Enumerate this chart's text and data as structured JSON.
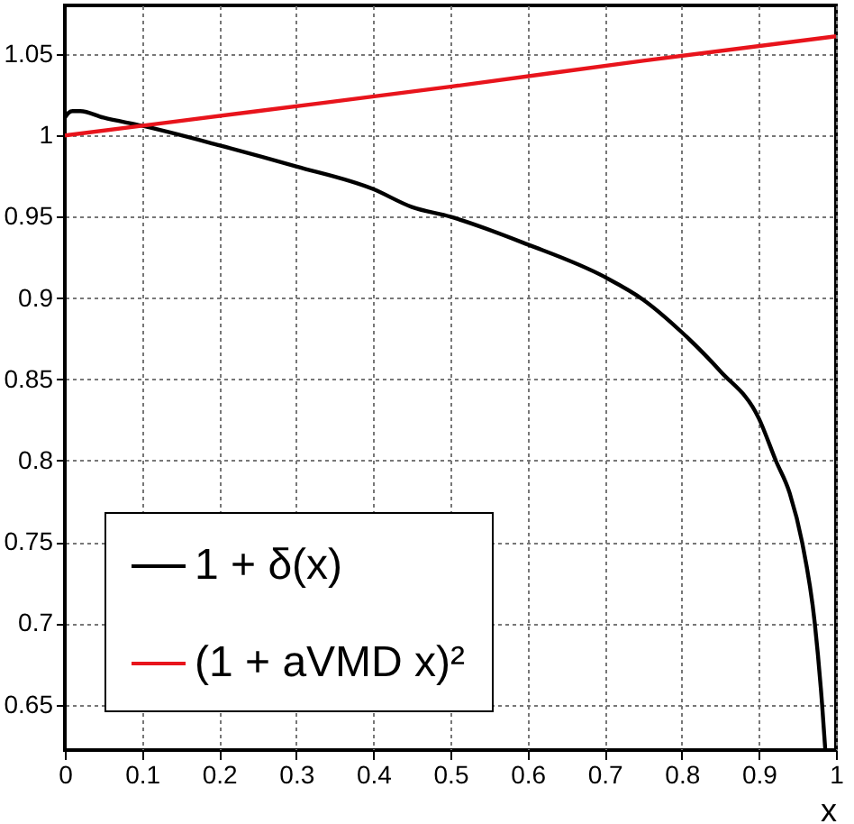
{
  "chart_data": {
    "type": "line",
    "xlabel": "x",
    "xlim": [
      0,
      1
    ],
    "ylim": [
      0.622,
      1.08
    ],
    "xticks": [
      0,
      0.1,
      0.2,
      0.3,
      0.4,
      0.5,
      0.6,
      0.7,
      0.8,
      0.9,
      1
    ],
    "yticks": [
      0.65,
      0.7,
      0.75,
      0.8,
      0.85,
      0.9,
      0.95,
      1,
      1.05
    ],
    "grid": true,
    "legend": "bottom left",
    "line_style": "solid",
    "marker": "none",
    "series": [
      {
        "name": "1 + δ(x)",
        "color": "#000000",
        "x": [
          0,
          0.005,
          0.01,
          0.02,
          0.05,
          0.1,
          0.2,
          0.3,
          0.4,
          0.45,
          0.5,
          0.6,
          0.7,
          0.75,
          0.8,
          0.85,
          0.9,
          0.922,
          0.94,
          0.956,
          0.9725,
          0.982,
          0.986
        ],
        "values": [
          1.011,
          1.014,
          1.015,
          1.015,
          1.011,
          1.006,
          0.994,
          0.981,
          0.967,
          0.956,
          0.95,
          0.933,
          0.913,
          0.899,
          0.879,
          0.855,
          0.826,
          0.8,
          0.78,
          0.75,
          0.7,
          0.65,
          0.623
        ]
      },
      {
        "name": "(1 + aVMD x)²",
        "color": "#e8141c",
        "x": [
          0,
          0.25,
          0.5,
          0.75,
          1
        ],
        "values": [
          1.0,
          1.015,
          1.03,
          1.046,
          1.061
        ]
      }
    ]
  }
}
